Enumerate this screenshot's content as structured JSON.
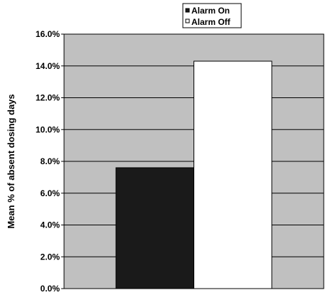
{
  "chart_data": {
    "type": "bar",
    "categories": [
      ""
    ],
    "series": [
      {
        "name": "Alarm On",
        "values": [
          7.6
        ],
        "color": "#1a1a1a"
      },
      {
        "name": "Alarm Off",
        "values": [
          14.3
        ],
        "color": "#ffffff"
      }
    ],
    "title": "",
    "xlabel": "",
    "ylabel": "Mean % of absent dosing days",
    "ylim": [
      0,
      16
    ],
    "yticks": [
      0,
      2,
      4,
      6,
      8,
      10,
      12,
      14,
      16
    ],
    "ytick_labels": [
      "0.0%",
      "2.0%",
      "4.0%",
      "6.0%",
      "8.0%",
      "10.0%",
      "12.0%",
      "14.0%",
      "16.0%"
    ],
    "grid": true,
    "legend_position": "top-center",
    "plot_background": "#c0c0c0"
  }
}
